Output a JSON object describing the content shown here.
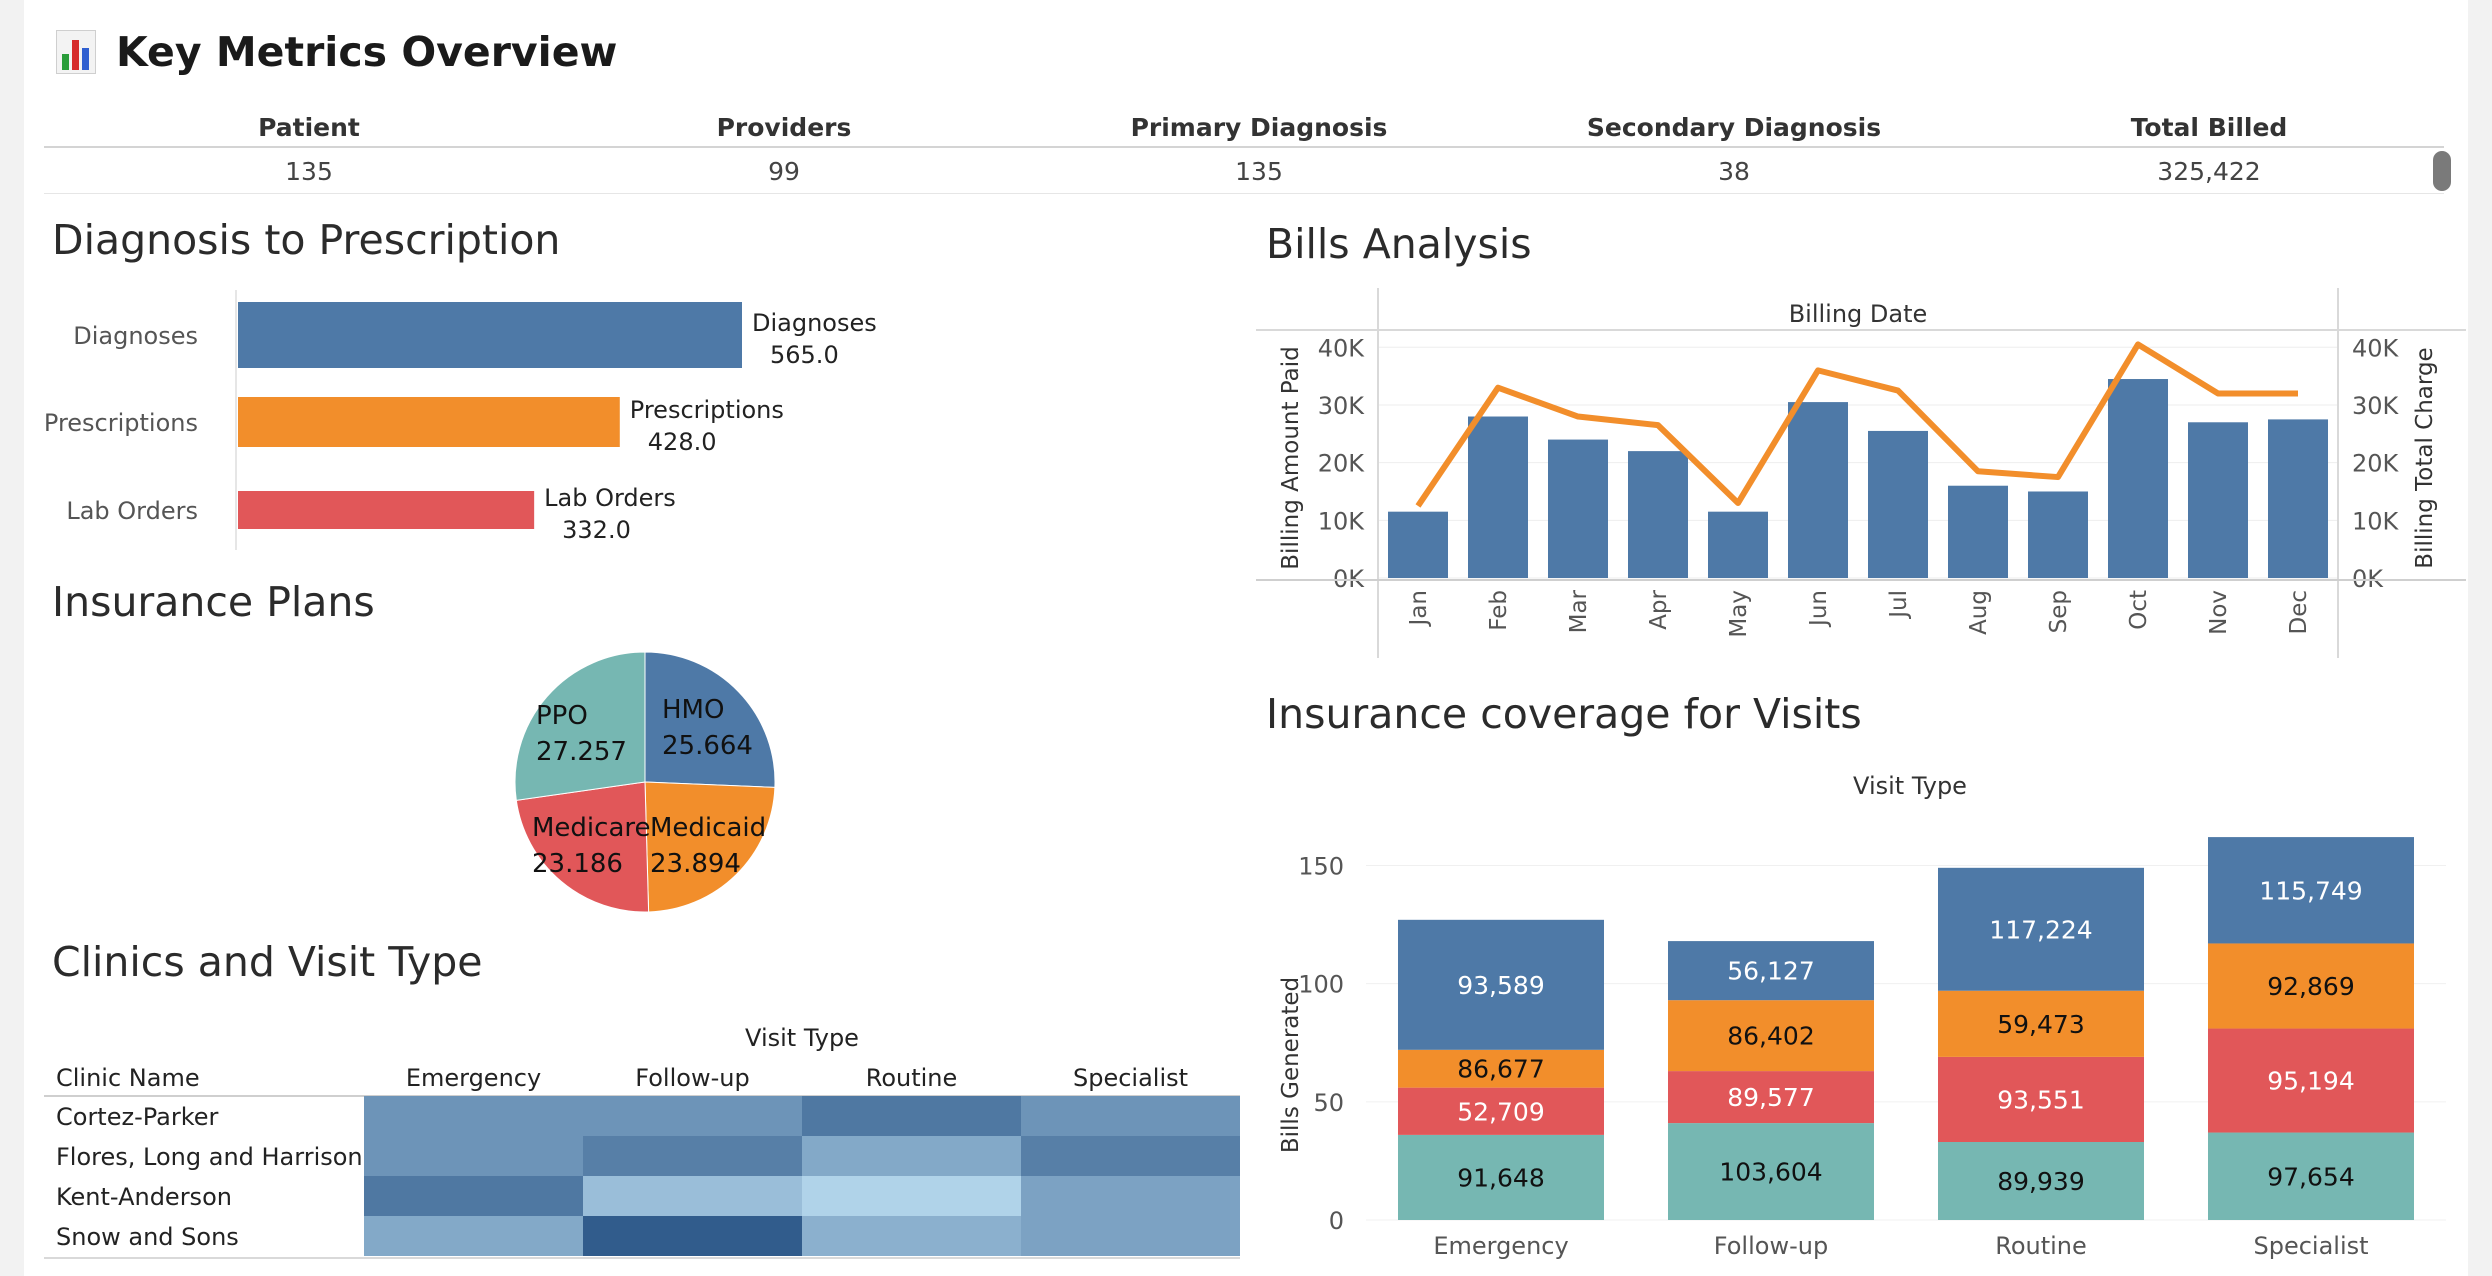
{
  "header": {
    "title": "Key Metrics Overview",
    "icon": "bar-chart-icon"
  },
  "kpis": {
    "columns": [
      "Patient",
      "Providers",
      "Primary Diagnosis",
      "Secondary Diagnosis",
      "Total Billed"
    ],
    "values": [
      "135",
      "99",
      "135",
      "38",
      "325,422"
    ]
  },
  "sections": {
    "diagnosis": "Diagnosis to Prescription",
    "insurance": "Insurance Plans",
    "clinics": "Clinics and Visit Type",
    "bills": "Bills Analysis",
    "coverage": "Insurance coverage for Visits"
  },
  "colors": {
    "blue": "#4e79a7",
    "orange": "#f28e2b",
    "red": "#e15759",
    "teal": "#76b7b2"
  },
  "chart_data": [
    {
      "id": "diagnosis-to-prescription",
      "type": "bar",
      "orientation": "horizontal",
      "categories": [
        "Diagnoses",
        "Prescriptions",
        "Lab Orders"
      ],
      "values": [
        565.0,
        428.0,
        332.0
      ],
      "value_labels": [
        "565.0",
        "428.0",
        "332.0"
      ],
      "colors": [
        "#4e79a7",
        "#f28e2b",
        "#e15759"
      ]
    },
    {
      "id": "insurance-plans",
      "type": "pie",
      "categories": [
        "HMO",
        "Medicaid",
        "Medicare",
        "PPO"
      ],
      "values": [
        25.664,
        23.894,
        23.186,
        27.257
      ],
      "value_labels": [
        "25.664",
        "23.894",
        "23.186",
        "27.257"
      ],
      "colors": [
        "#4e79a7",
        "#f28e2b",
        "#e15759",
        "#76b7b2"
      ]
    },
    {
      "id": "bills-analysis",
      "type": "bar",
      "title": "Billing Date",
      "categories": [
        "Jan",
        "Feb",
        "Mar",
        "Apr",
        "May",
        "Jun",
        "Jul",
        "Aug",
        "Sep",
        "Oct",
        "Nov",
        "Dec"
      ],
      "ylabel": "Billing Amount Paid",
      "y2label": "Billing Total Charge",
      "ylim": [
        0,
        43000
      ],
      "yticks": [
        0,
        10000,
        20000,
        30000,
        40000
      ],
      "ytick_labels": [
        "0K",
        "10K",
        "20K",
        "30K",
        "40K"
      ],
      "series": [
        {
          "type": "bar",
          "axis": "left",
          "color": "#4e79a7",
          "values": [
            11500,
            28000,
            24000,
            22000,
            11500,
            30500,
            25500,
            16000,
            15000,
            34500,
            27000,
            27500
          ]
        },
        {
          "type": "line",
          "axis": "right",
          "color": "#f28e2b",
          "values": [
            12500,
            33000,
            28000,
            26500,
            13000,
            36000,
            32500,
            18500,
            17500,
            40500,
            32000,
            32000
          ]
        }
      ],
      "grid": true
    },
    {
      "id": "insurance-coverage",
      "type": "bar",
      "stacked": true,
      "title": "Visit Type",
      "ylabel": "Bills Generated",
      "categories": [
        "Emergency",
        "Follow-up",
        "Routine",
        "Specialist"
      ],
      "ylim": [
        0,
        165
      ],
      "yticks": [
        0,
        50,
        100,
        150
      ],
      "stack_order_bottom_to_top": [
        "#76b7b2",
        "#e15759",
        "#f28e2b",
        "#4e79a7"
      ],
      "segments": [
        {
          "counts": [
            36,
            20,
            16,
            55
          ],
          "labels": [
            "91,648",
            "52,709",
            "86,677",
            "93,589"
          ]
        },
        {
          "counts": [
            41,
            22,
            30,
            25
          ],
          "labels": [
            "103,604",
            "89,577",
            "86,402",
            "56,127"
          ]
        },
        {
          "counts": [
            33,
            36,
            28,
            52
          ],
          "labels": [
            "89,939",
            "93,551",
            "59,473",
            "117,224"
          ]
        },
        {
          "counts": [
            37,
            44,
            36,
            45
          ],
          "labels": [
            "97,654",
            "95,194",
            "92,869",
            "115,749"
          ]
        }
      ]
    },
    {
      "id": "clinics-visit-type",
      "type": "heatmap",
      "title": "Visit Type",
      "row_header": "Clinic Name",
      "rows": [
        "Cortez-Parker",
        "Flores, Long and Harrison",
        "Kent-Anderson",
        "Snow and Sons"
      ],
      "columns": [
        "Emergency",
        "Follow-up",
        "Routine",
        "Specialist"
      ],
      "intensity": [
        [
          0.55,
          0.55,
          0.75,
          0.55
        ],
        [
          0.55,
          0.7,
          0.4,
          0.7
        ],
        [
          0.75,
          0.25,
          0.1,
          0.45
        ],
        [
          0.4,
          0.95,
          0.35,
          0.45
        ]
      ]
    }
  ]
}
